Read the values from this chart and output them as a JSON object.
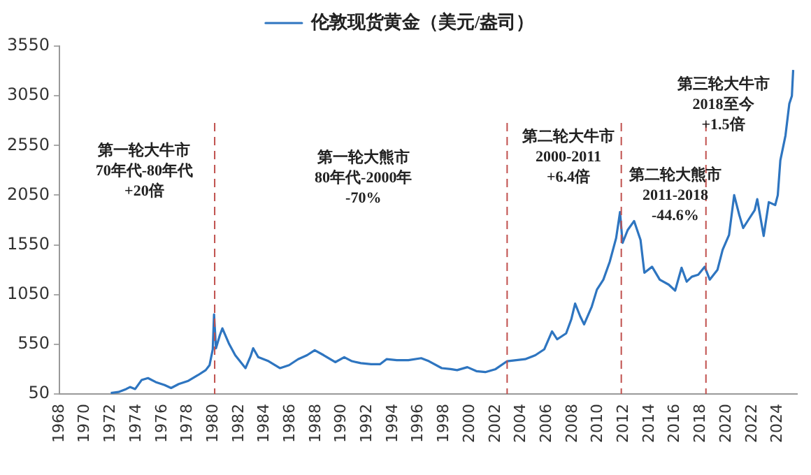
{
  "chart_data": {
    "type": "line",
    "series": [
      {
        "name": "伦敦现货黄金（美元/盎司）",
        "color": "#2e75c0",
        "x": [
          1972.0,
          1972.6,
          1973.2,
          1973.5,
          1973.9,
          1974.4,
          1974.9,
          1975.5,
          1976.2,
          1976.7,
          1977.3,
          1978.0,
          1978.8,
          1979.4,
          1979.7,
          1979.95,
          1980.05,
          1980.2,
          1980.5,
          1980.7,
          1981.2,
          1981.7,
          1982.5,
          1982.9,
          1983.1,
          1983.5,
          1984.3,
          1985.2,
          1985.9,
          1986.6,
          1987.3,
          1987.9,
          1988.6,
          1989.5,
          1990.2,
          1990.8,
          1991.5,
          1992.3,
          1993.0,
          1993.5,
          1994.3,
          1995.2,
          1996.2,
          1996.8,
          1997.8,
          1998.5,
          1999.0,
          1999.8,
          2000.5,
          2001.2,
          2002.0,
          2002.9,
          2003.6,
          2004.3,
          2005.1,
          2005.8,
          2006.4,
          2006.8,
          2007.5,
          2007.9,
          2008.2,
          2008.6,
          2008.9,
          2009.5,
          2009.9,
          2010.4,
          2010.9,
          2011.4,
          2011.7,
          2011.9,
          2012.3,
          2012.8,
          2013.3,
          2013.6,
          2014.2,
          2014.8,
          2015.5,
          2016.0,
          2016.5,
          2016.9,
          2017.3,
          2017.8,
          2018.3,
          2018.7,
          2019.3,
          2019.7,
          2020.2,
          2020.6,
          2021.0,
          2021.3,
          2021.7,
          2022.2,
          2022.4,
          2022.9,
          2023.3,
          2023.8,
          2024.0,
          2024.2,
          2024.6,
          2024.9,
          2025.1,
          2025.2
        ],
        "values": [
          60,
          70,
          100,
          120,
          100,
          190,
          210,
          170,
          140,
          110,
          150,
          180,
          240,
          290,
          340,
          500,
          850,
          510,
          640,
          710,
          560,
          440,
          310,
          430,
          510,
          420,
          380,
          310,
          340,
          400,
          440,
          490,
          440,
          370,
          420,
          380,
          360,
          350,
          350,
          400,
          390,
          390,
          410,
          380,
          310,
          300,
          290,
          320,
          280,
          270,
          300,
          380,
          390,
          400,
          440,
          500,
          680,
          600,
          660,
          800,
          960,
          830,
          750,
          930,
          1100,
          1200,
          1380,
          1620,
          1880,
          1570,
          1700,
          1790,
          1600,
          1270,
          1330,
          1200,
          1150,
          1090,
          1320,
          1180,
          1230,
          1250,
          1330,
          1200,
          1300,
          1500,
          1650,
          2050,
          1850,
          1720,
          1800,
          1900,
          2010,
          1640,
          1980,
          1950,
          2050,
          2400,
          2650,
          2970,
          3050,
          3310
        ]
      }
    ],
    "xlim": [
      1968,
      2025.5
    ],
    "xticks": [
      1968,
      1970,
      1972,
      1974,
      1976,
      1978,
      1980,
      1982,
      1984,
      1986,
      1988,
      1990,
      1992,
      1994,
      1996,
      1998,
      2000,
      2002,
      2004,
      2006,
      2008,
      2010,
      2012,
      2014,
      2016,
      2018,
      2020,
      2022,
      2024
    ],
    "ylim": [
      50,
      3550
    ],
    "yticks": [
      50,
      550,
      1050,
      1550,
      2050,
      2550,
      3050,
      3550
    ],
    "grid": false,
    "legend": "top",
    "marker": "none",
    "line_style": "solid",
    "ref_lines": [
      {
        "axis": "x",
        "value": 1980.1,
        "color": "#c0504d",
        "line_style": "dashed"
      },
      {
        "axis": "x",
        "value": 2002.9,
        "color": "#c0504d",
        "line_style": "dashed"
      },
      {
        "axis": "x",
        "value": 2011.8,
        "color": "#c0504d",
        "line_style": "dashed"
      },
      {
        "axis": "x",
        "value": 2018.4,
        "color": "#c0504d",
        "line_style": "dashed"
      }
    ],
    "annotations": [
      "第一轮大牛市\n70年代-80年代\n+20倍",
      "第一轮大熊市\n80年代-2000年\n-70%",
      "第二轮大牛市\n2000-2011\n+6.4倍",
      "第二轮大熊市\n2011-2018\n-44.6%",
      "第三轮大牛市\n2018至今\n+1.5倍"
    ]
  }
}
